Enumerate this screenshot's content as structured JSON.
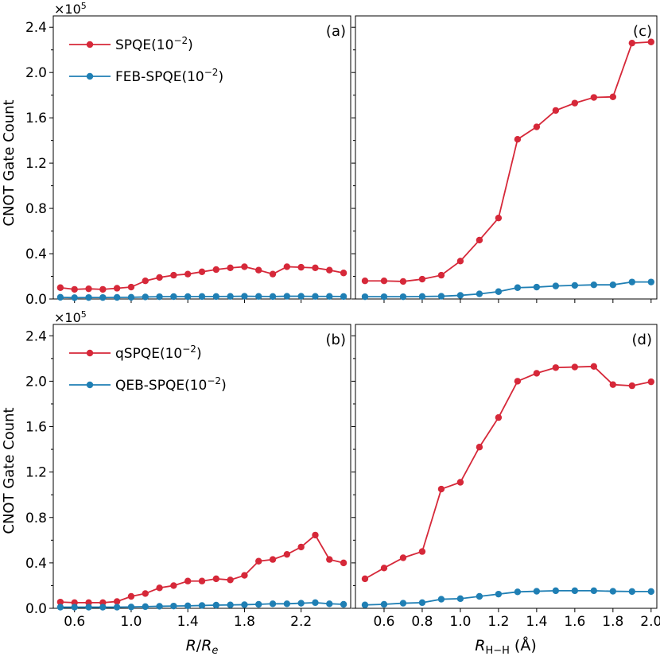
{
  "colors": {
    "red": "#d62839",
    "blue": "#1f7fb4"
  },
  "ylabel": "CNOT Gate Count",
  "multiplier": {
    "base": "×10",
    "exp": "5"
  },
  "xlabel_left": {
    "italic1": "R",
    "slash": "/",
    "italic2": "R",
    "sub": "e"
  },
  "xlabel_right": {
    "italic": "R",
    "sub": "H−H",
    "unit": " (Å)"
  },
  "chart_data": [
    {
      "panel": "(a)",
      "type": "line",
      "xlabel": "R/Re",
      "ylabel": "CNOT Gate Count",
      "ylim": [
        0,
        2.5
      ],
      "xlim": [
        0.45,
        2.55
      ],
      "yscale_label": "×10^5",
      "yticks": [
        "0.0",
        "0.4",
        "0.8",
        "1.2",
        "1.6",
        "2.0",
        "2.4"
      ],
      "xticks": [
        "0.6",
        "1.0",
        "1.4",
        "1.8",
        "2.2"
      ],
      "x": [
        0.5,
        0.6,
        0.7,
        0.8,
        0.9,
        1.0,
        1.1,
        1.2,
        1.3,
        1.4,
        1.5,
        1.6,
        1.7,
        1.8,
        1.9,
        2.0,
        2.1,
        2.2,
        2.3,
        2.4,
        2.5
      ],
      "series": [
        {
          "name": "SPQE(10",
          "exp": "−2",
          "suffix": ")",
          "color": "#d62839",
          "values": [
            0.1,
            0.085,
            0.09,
            0.085,
            0.095,
            0.105,
            0.16,
            0.19,
            0.21,
            0.22,
            0.24,
            0.26,
            0.275,
            0.285,
            0.255,
            0.22,
            0.285,
            0.28,
            0.275,
            0.255,
            0.23
          ]
        },
        {
          "name": "FEB-SPQE(10",
          "exp": "−2",
          "suffix": ")",
          "color": "#1f7fb4",
          "values": [
            0.015,
            0.012,
            0.013,
            0.013,
            0.014,
            0.015,
            0.018,
            0.02,
            0.021,
            0.021,
            0.022,
            0.022,
            0.023,
            0.024,
            0.023,
            0.022,
            0.024,
            0.024,
            0.023,
            0.023,
            0.022
          ]
        }
      ]
    },
    {
      "panel": "(c)",
      "type": "line",
      "xlabel": "R_H−H (Å)",
      "ylim": [
        0,
        2.5
      ],
      "xlim": [
        0.45,
        2.03
      ],
      "xticks": [
        "0.6",
        "0.8",
        "1.0",
        "1.2",
        "1.4",
        "1.6",
        "1.8",
        "2.0"
      ],
      "x": [
        0.5,
        0.6,
        0.7,
        0.8,
        0.9,
        1.0,
        1.1,
        1.2,
        1.3,
        1.4,
        1.5,
        1.6,
        1.7,
        1.8,
        1.9,
        2.0
      ],
      "series": [
        {
          "name": "SPQE(10^-2)",
          "color": "#d62839",
          "values": [
            0.16,
            0.16,
            0.155,
            0.175,
            0.21,
            0.335,
            0.52,
            0.715,
            1.41,
            1.52,
            1.665,
            1.73,
            1.78,
            1.785,
            2.26,
            2.27
          ]
        },
        {
          "name": "FEB-SPQE(10^-2)",
          "color": "#1f7fb4",
          "values": [
            0.02,
            0.02,
            0.02,
            0.022,
            0.024,
            0.032,
            0.045,
            0.065,
            0.1,
            0.105,
            0.115,
            0.12,
            0.125,
            0.125,
            0.15,
            0.15
          ]
        }
      ]
    },
    {
      "panel": "(b)",
      "type": "line",
      "xlabel": "R/Re",
      "ylabel": "CNOT Gate Count",
      "ylim": [
        0,
        2.5
      ],
      "xlim": [
        0.45,
        2.55
      ],
      "yscale_label": "×10^5",
      "yticks": [
        "0.0",
        "0.4",
        "0.8",
        "1.2",
        "1.6",
        "2.0",
        "2.4"
      ],
      "xticks": [
        "0.6",
        "1.0",
        "1.4",
        "1.8",
        "2.2"
      ],
      "x": [
        0.5,
        0.6,
        0.7,
        0.8,
        0.9,
        1.0,
        1.1,
        1.2,
        1.3,
        1.4,
        1.5,
        1.6,
        1.7,
        1.8,
        1.9,
        2.0,
        2.1,
        2.2,
        2.3,
        2.4,
        2.5
      ],
      "series": [
        {
          "name": "qSPQE(10",
          "exp": "−2",
          "suffix": ")",
          "color": "#d62839",
          "values": [
            0.055,
            0.05,
            0.05,
            0.05,
            0.06,
            0.105,
            0.13,
            0.18,
            0.2,
            0.24,
            0.24,
            0.26,
            0.25,
            0.29,
            0.415,
            0.43,
            0.475,
            0.54,
            0.645,
            0.43,
            0.4
          ]
        },
        {
          "name": "QEB-SPQE(10",
          "exp": "−2",
          "suffix": ")",
          "color": "#1f7fb4",
          "values": [
            0.01,
            0.01,
            0.01,
            0.01,
            0.01,
            0.012,
            0.015,
            0.018,
            0.02,
            0.022,
            0.025,
            0.028,
            0.03,
            0.032,
            0.035,
            0.04,
            0.04,
            0.045,
            0.05,
            0.04,
            0.035
          ]
        }
      ]
    },
    {
      "panel": "(d)",
      "type": "line",
      "xlabel": "R_H−H (Å)",
      "ylim": [
        0,
        2.5
      ],
      "xlim": [
        0.45,
        2.03
      ],
      "xticks": [
        "0.6",
        "0.8",
        "1.0",
        "1.2",
        "1.4",
        "1.6",
        "1.8",
        "2.0"
      ],
      "x": [
        0.5,
        0.6,
        0.7,
        0.8,
        0.9,
        1.0,
        1.1,
        1.2,
        1.3,
        1.4,
        1.5,
        1.6,
        1.7,
        1.8,
        1.9,
        2.0
      ],
      "series": [
        {
          "name": "qSPQE(10^-2)",
          "color": "#d62839",
          "values": [
            0.26,
            0.355,
            0.445,
            0.5,
            1.05,
            1.11,
            1.42,
            1.68,
            2.0,
            2.07,
            2.12,
            2.125,
            2.13,
            1.97,
            1.96,
            1.995
          ]
        },
        {
          "name": "QEB-SPQE(10^-2)",
          "color": "#1f7fb4",
          "values": [
            0.03,
            0.035,
            0.045,
            0.05,
            0.08,
            0.085,
            0.105,
            0.125,
            0.145,
            0.15,
            0.155,
            0.155,
            0.155,
            0.15,
            0.148,
            0.148
          ]
        }
      ]
    }
  ]
}
